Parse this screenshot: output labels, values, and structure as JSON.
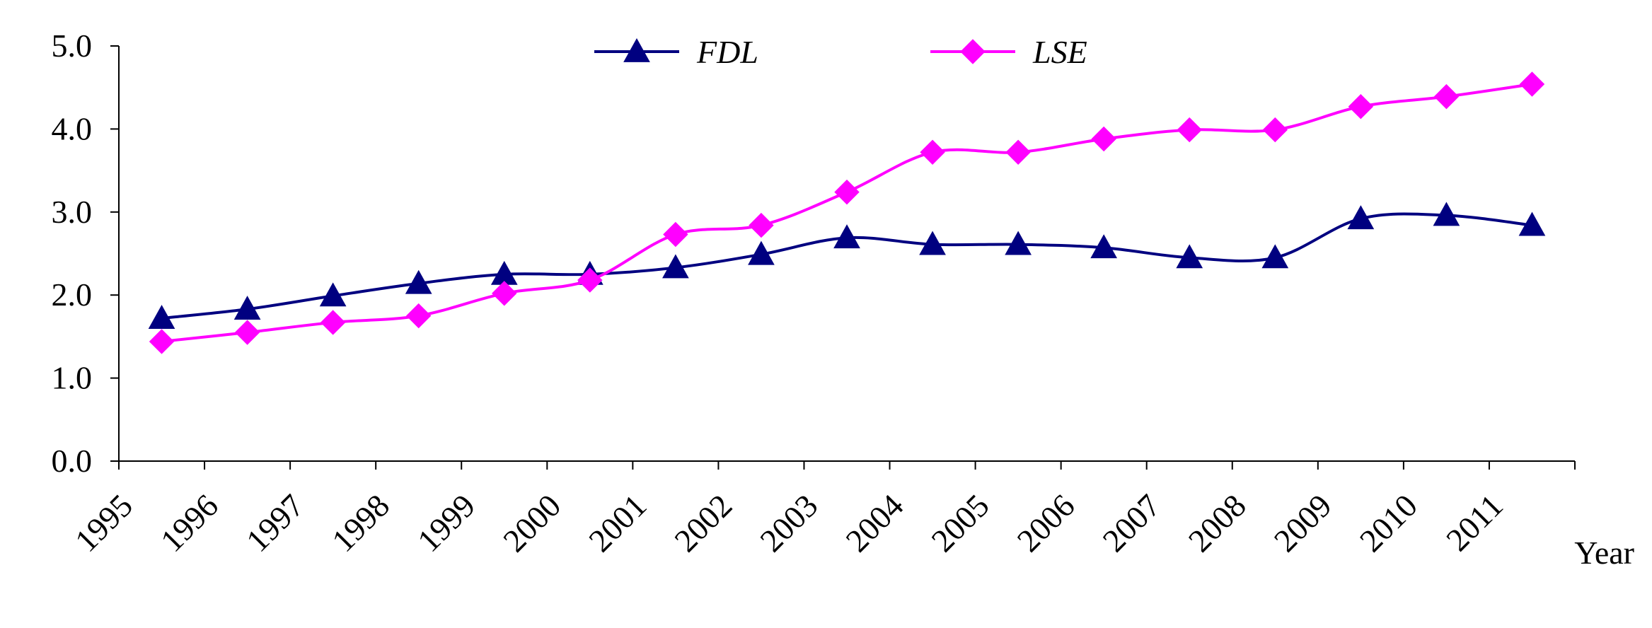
{
  "chart_data": {
    "type": "line",
    "title": "",
    "xlabel": "Year",
    "ylabel": "",
    "ylim": [
      0,
      5
    ],
    "yticks": [
      "0.0",
      "1.0",
      "2.0",
      "3.0",
      "4.0",
      "5.0"
    ],
    "categories": [
      "1995",
      "1996",
      "1997",
      "1998",
      "1999",
      "2000",
      "2001",
      "2002",
      "2003",
      "2004",
      "2005",
      "2006",
      "2007",
      "2008",
      "2009",
      "2010",
      "2011"
    ],
    "grid": false,
    "legend_position": "top-center",
    "series": [
      {
        "name": "FDL",
        "color": "#000080",
        "marker": "triangle",
        "values": [
          1.72,
          1.83,
          1.99,
          2.14,
          2.25,
          2.25,
          2.33,
          2.49,
          2.69,
          2.61,
          2.61,
          2.57,
          2.45,
          2.45,
          2.92,
          2.96,
          2.84
        ]
      },
      {
        "name": "LSE",
        "color": "#ff00ff",
        "marker": "diamond",
        "values": [
          1.44,
          1.55,
          1.67,
          1.75,
          2.02,
          2.18,
          2.73,
          2.84,
          3.24,
          3.72,
          3.72,
          3.88,
          3.99,
          3.99,
          4.27,
          4.39,
          4.54
        ]
      }
    ]
  }
}
